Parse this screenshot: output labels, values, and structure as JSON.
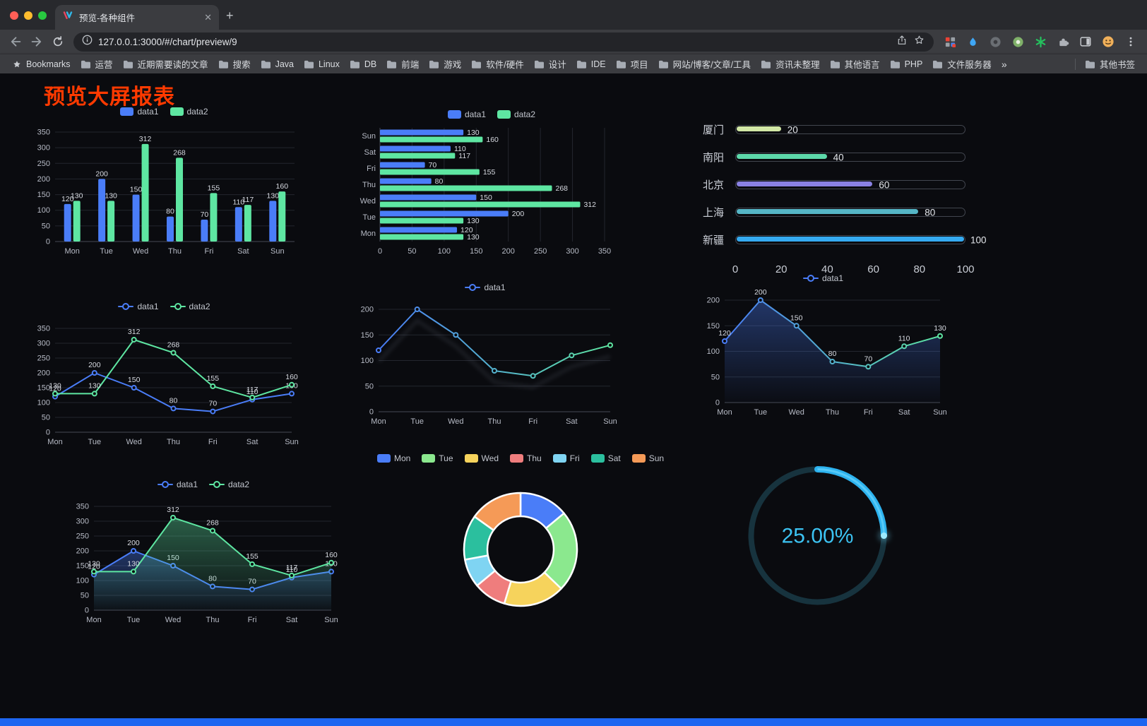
{
  "browser": {
    "tab_title": "预览-各种组件",
    "url": "127.0.0.1:3000/#/chart/preview/9",
    "bookmarks_label": "Bookmarks",
    "bookmarks": [
      "运营",
      "近期需要读的文章",
      "搜索",
      "Java",
      "Linux",
      "DB",
      "前端",
      "游戏",
      "软件/硬件",
      "设计",
      "IDE",
      "项目",
      "网站/博客/文章/工具",
      "资讯未整理",
      "其他语言",
      "PHP",
      "文件服务器"
    ],
    "bookmarks_overflow": "»",
    "other_bookmarks": "其他书签"
  },
  "page": {
    "title": "预览大屏报表",
    "title_color": "#ff3a00"
  },
  "chart_data": [
    {
      "id": "grouped-bar",
      "type": "bar",
      "categories": [
        "Mon",
        "Tue",
        "Wed",
        "Thu",
        "Fri",
        "Sat",
        "Sun"
      ],
      "series": [
        {
          "name": "data1",
          "color": "#4a7df8",
          "values": [
            120,
            200,
            150,
            80,
            70,
            110,
            130
          ]
        },
        {
          "name": "data2",
          "color": "#5ee6a2",
          "values": [
            130,
            130,
            312,
            268,
            155,
            117,
            160
          ]
        }
      ],
      "ylim": [
        0,
        350
      ],
      "tick_step": 50,
      "legend": true,
      "legend_style": "rect",
      "grid": true
    },
    {
      "id": "grouped-horizontal-bar",
      "type": "hbar",
      "categories": [
        "Mon",
        "Tue",
        "Wed",
        "Thu",
        "Fri",
        "Sat",
        "Sun"
      ],
      "series": [
        {
          "name": "data1",
          "color": "#4a7df8",
          "values": [
            120,
            200,
            150,
            80,
            70,
            110,
            130
          ]
        },
        {
          "name": "data2",
          "color": "#5ee6a2",
          "values": [
            130,
            130,
            312,
            268,
            155,
            117,
            160
          ]
        }
      ],
      "xlim": [
        0,
        350
      ],
      "tick_step": 50,
      "legend": true,
      "legend_style": "rect",
      "grid": true
    },
    {
      "id": "city-progress-bars",
      "type": "progress",
      "max": 100,
      "rows": [
        {
          "label": "厦门",
          "value": 20,
          "color": "#d2e8a6"
        },
        {
          "label": "南阳",
          "value": 40,
          "color": "#5dd9aa"
        },
        {
          "label": "北京",
          "value": 60,
          "color": "#8a81e3"
        },
        {
          "label": "上海",
          "value": 80,
          "color": "#55b6c6"
        },
        {
          "label": "新疆",
          "value": 100,
          "color": "#35aaf0"
        }
      ],
      "axis_ticks": [
        0,
        20,
        40,
        60,
        80,
        100
      ]
    },
    {
      "id": "two-series-line",
      "type": "line",
      "categories": [
        "Mon",
        "Tue",
        "Wed",
        "Thu",
        "Fri",
        "Sat",
        "Sun"
      ],
      "series": [
        {
          "name": "data1",
          "color": "#4a7df8",
          "values": [
            120,
            200,
            150,
            80,
            70,
            110,
            130
          ]
        },
        {
          "name": "data2",
          "color": "#5ee6a2",
          "values": [
            130,
            130,
            312,
            268,
            155,
            117,
            160
          ]
        }
      ],
      "ylim": [
        0,
        350
      ],
      "tick_step": 50,
      "legend": true,
      "legend_style": "line",
      "labels": true,
      "grid": true
    },
    {
      "id": "single-line-gradient",
      "type": "line",
      "categories": [
        "Mon",
        "Tue",
        "Wed",
        "Thu",
        "Fri",
        "Sat",
        "Sun"
      ],
      "series": [
        {
          "name": "data1",
          "color": "#4a7df8",
          "values": [
            120,
            200,
            150,
            80,
            70,
            110,
            130
          ]
        }
      ],
      "ylim": [
        0,
        200
      ],
      "tick_step": 50,
      "legend": true,
      "legend_style": "line",
      "labels": false,
      "gradient_to": "#5ee6a2",
      "echo": true,
      "grid": true
    },
    {
      "id": "single-area-line",
      "type": "line",
      "categories": [
        "Mon",
        "Tue",
        "Wed",
        "Thu",
        "Fri",
        "Sat",
        "Sun"
      ],
      "series": [
        {
          "name": "data1",
          "color": "#4a7df8",
          "values": [
            120,
            200,
            150,
            80,
            70,
            110,
            130
          ],
          "area": true
        }
      ],
      "ylim": [
        0,
        200
      ],
      "tick_step": 50,
      "legend": true,
      "legend_style": "line",
      "labels": true,
      "gradient_to": "#5ee6a2",
      "grid": true
    },
    {
      "id": "two-series-area-line",
      "type": "line",
      "categories": [
        "Mon",
        "Tue",
        "Wed",
        "Thu",
        "Fri",
        "Sat",
        "Sun"
      ],
      "series": [
        {
          "name": "data1",
          "color": "#4a7df8",
          "values": [
            120,
            200,
            150,
            80,
            70,
            110,
            130
          ],
          "area": true
        },
        {
          "name": "data2",
          "color": "#5ee6a2",
          "values": [
            130,
            130,
            312,
            268,
            155,
            117,
            160
          ],
          "area": true
        }
      ],
      "ylim": [
        0,
        350
      ],
      "tick_step": 50,
      "legend": true,
      "legend_style": "line",
      "labels": true,
      "grid": true
    },
    {
      "id": "weekday-donut",
      "type": "pie",
      "categories": [
        "Mon",
        "Tue",
        "Wed",
        "Thu",
        "Fri",
        "Sat",
        "Sun"
      ],
      "values": [
        120,
        200,
        150,
        80,
        70,
        110,
        130
      ],
      "colors": [
        "#4a7df8",
        "#8be88e",
        "#f6d35c",
        "#ef7d7d",
        "#7fd4f2",
        "#2bbf9e",
        "#f59a57"
      ],
      "inner_radius": 47,
      "outer_radius": 80,
      "legend": true
    },
    {
      "id": "percent-gauge",
      "type": "gauge",
      "value": 25,
      "label": "25.00%",
      "color": "#2db3ef",
      "track_color": "#17333e",
      "text_color": "#3cc3f2"
    }
  ]
}
